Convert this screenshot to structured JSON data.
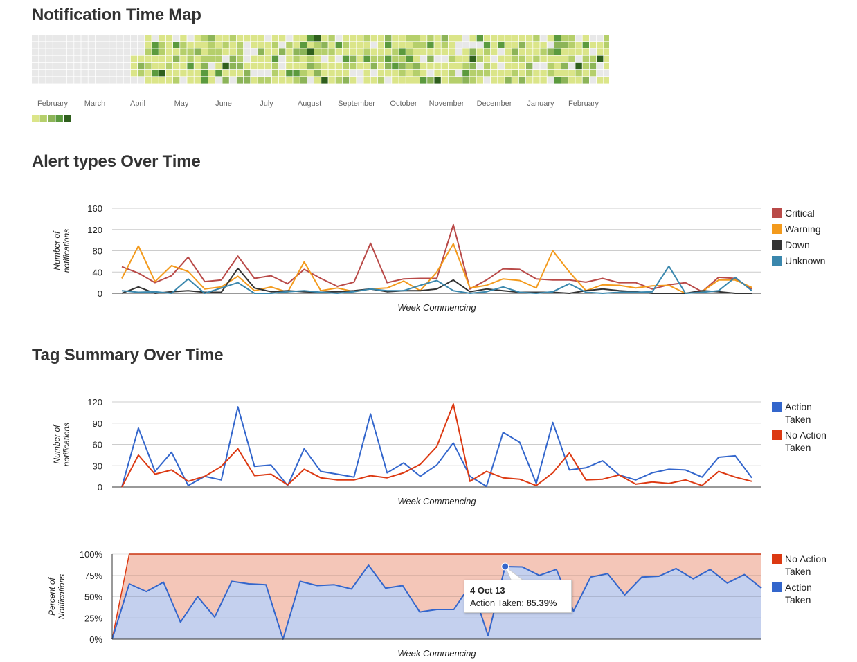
{
  "titles": {
    "heatmap": "Notification Time Map",
    "alerts": "Alert types Over Time",
    "tags": "Tag Summary Over Time"
  },
  "heatmap": {
    "months": [
      "February",
      "March",
      "April",
      "May",
      "June",
      "July",
      "August",
      "September",
      "October",
      "November",
      "December",
      "January",
      "February"
    ],
    "colors": [
      "#e8e8e8",
      "#dbe589",
      "#b5cf6b",
      "#8cb458",
      "#5b9a3e",
      "#2f5f1d"
    ],
    "legend": [
      1,
      2,
      3,
      4,
      5
    ]
  },
  "chart_data": [
    {
      "type": "line",
      "title": "Alert types Over Time",
      "xlabel": "Week Commencing",
      "ylabel": "Number of notifications",
      "ylim": [
        0,
        160
      ],
      "yticks": [
        0,
        40,
        80,
        120,
        160
      ],
      "legend_position": "right",
      "series": [
        {
          "name": "Critical",
          "color": "#b94a48",
          "values": [
            50,
            38,
            20,
            33,
            68,
            22,
            25,
            70,
            28,
            33,
            18,
            45,
            28,
            13,
            21,
            94,
            20,
            27,
            28,
            28,
            129,
            8,
            25,
            46,
            45,
            27,
            25,
            25,
            21,
            28,
            20,
            20,
            8,
            16,
            20,
            3,
            30,
            28,
            8
          ]
        },
        {
          "name": "Warning",
          "color": "#f39a1c",
          "values": [
            28,
            89,
            22,
            52,
            41,
            8,
            12,
            32,
            5,
            12,
            2,
            59,
            5,
            10,
            3,
            8,
            10,
            23,
            5,
            40,
            93,
            10,
            15,
            27,
            24,
            10,
            80,
            40,
            5,
            16,
            15,
            10,
            14,
            15,
            0,
            3,
            25,
            25,
            11
          ]
        },
        {
          "name": "Down",
          "color": "#333333",
          "values": [
            0,
            12,
            0,
            3,
            5,
            2,
            2,
            47,
            10,
            3,
            5,
            3,
            2,
            3,
            5,
            8,
            3,
            5,
            5,
            8,
            25,
            3,
            8,
            5,
            2,
            2,
            2,
            0,
            5,
            8,
            5,
            3,
            0,
            0,
            0,
            5,
            3,
            0,
            0
          ]
        },
        {
          "name": "Unknown",
          "color": "#3a87ad",
          "values": [
            5,
            2,
            3,
            0,
            27,
            0,
            10,
            20,
            0,
            0,
            3,
            5,
            2,
            0,
            3,
            8,
            5,
            5,
            15,
            24,
            5,
            0,
            3,
            12,
            2,
            0,
            3,
            18,
            2,
            0,
            2,
            2,
            3,
            51,
            0,
            2,
            5,
            30,
            5
          ]
        }
      ]
    },
    {
      "type": "line",
      "title": "Tag Summary Over Time",
      "xlabel": "Week Commencing",
      "ylabel": "Number of notifications",
      "ylim": [
        0,
        120
      ],
      "yticks": [
        0,
        30,
        60,
        90,
        120
      ],
      "legend_position": "right",
      "series": [
        {
          "name": "Action Taken",
          "color": "#3366cc",
          "values": [
            0,
            83,
            22,
            49,
            2,
            15,
            10,
            113,
            29,
            31,
            2,
            54,
            22,
            18,
            14,
            103,
            20,
            34,
            15,
            31,
            62,
            15,
            1,
            77,
            63,
            5,
            91,
            24,
            27,
            37,
            17,
            10,
            20,
            25,
            24,
            14,
            42,
            44,
            13
          ]
        },
        {
          "name": "No Action Taken",
          "color": "#dc3912",
          "values": [
            0,
            45,
            18,
            24,
            8,
            15,
            29,
            54,
            16,
            18,
            3,
            25,
            13,
            10,
            10,
            16,
            13,
            20,
            32,
            57,
            117,
            8,
            22,
            13,
            11,
            2,
            20,
            48,
            10,
            11,
            17,
            4,
            7,
            5,
            10,
            2,
            22,
            14,
            8
          ]
        }
      ]
    },
    {
      "type": "area",
      "stacked": "percent",
      "xlabel": "Week Commencing",
      "ylabel": "Percent of Notifications",
      "ylim": [
        0,
        100
      ],
      "yticks": [
        "0%",
        "25%",
        "50%",
        "75%",
        "100%"
      ],
      "legend_position": "right",
      "series": [
        {
          "name": "No Action Taken",
          "color": "#dc3912",
          "fill": "#f4c6b8",
          "values": [
            0,
            100,
            100,
            100,
            100,
            100,
            100,
            100,
            100,
            100,
            100,
            100,
            100,
            100,
            100,
            100,
            100,
            100,
            100,
            100,
            100,
            100,
            100,
            100,
            100,
            100,
            100,
            100,
            100,
            100,
            100,
            100,
            100,
            100,
            100,
            100,
            100,
            100,
            100
          ]
        },
        {
          "name": "Action Taken",
          "color": "#3366cc",
          "fill": "#c4d0ee",
          "values": [
            0,
            65,
            56,
            67,
            20,
            50,
            26,
            68,
            65,
            64,
            0,
            68,
            63,
            64,
            59,
            87,
            60,
            63,
            32,
            35,
            35,
            65,
            4,
            85.39,
            85,
            75,
            82,
            33,
            73,
            77,
            52,
            73,
            74,
            83,
            71,
            82,
            66,
            76,
            60
          ]
        }
      ],
      "tooltip": {
        "date": "4 Oct 13",
        "label": "Action Taken:",
        "value": "85.39%",
        "index": 23
      }
    }
  ]
}
